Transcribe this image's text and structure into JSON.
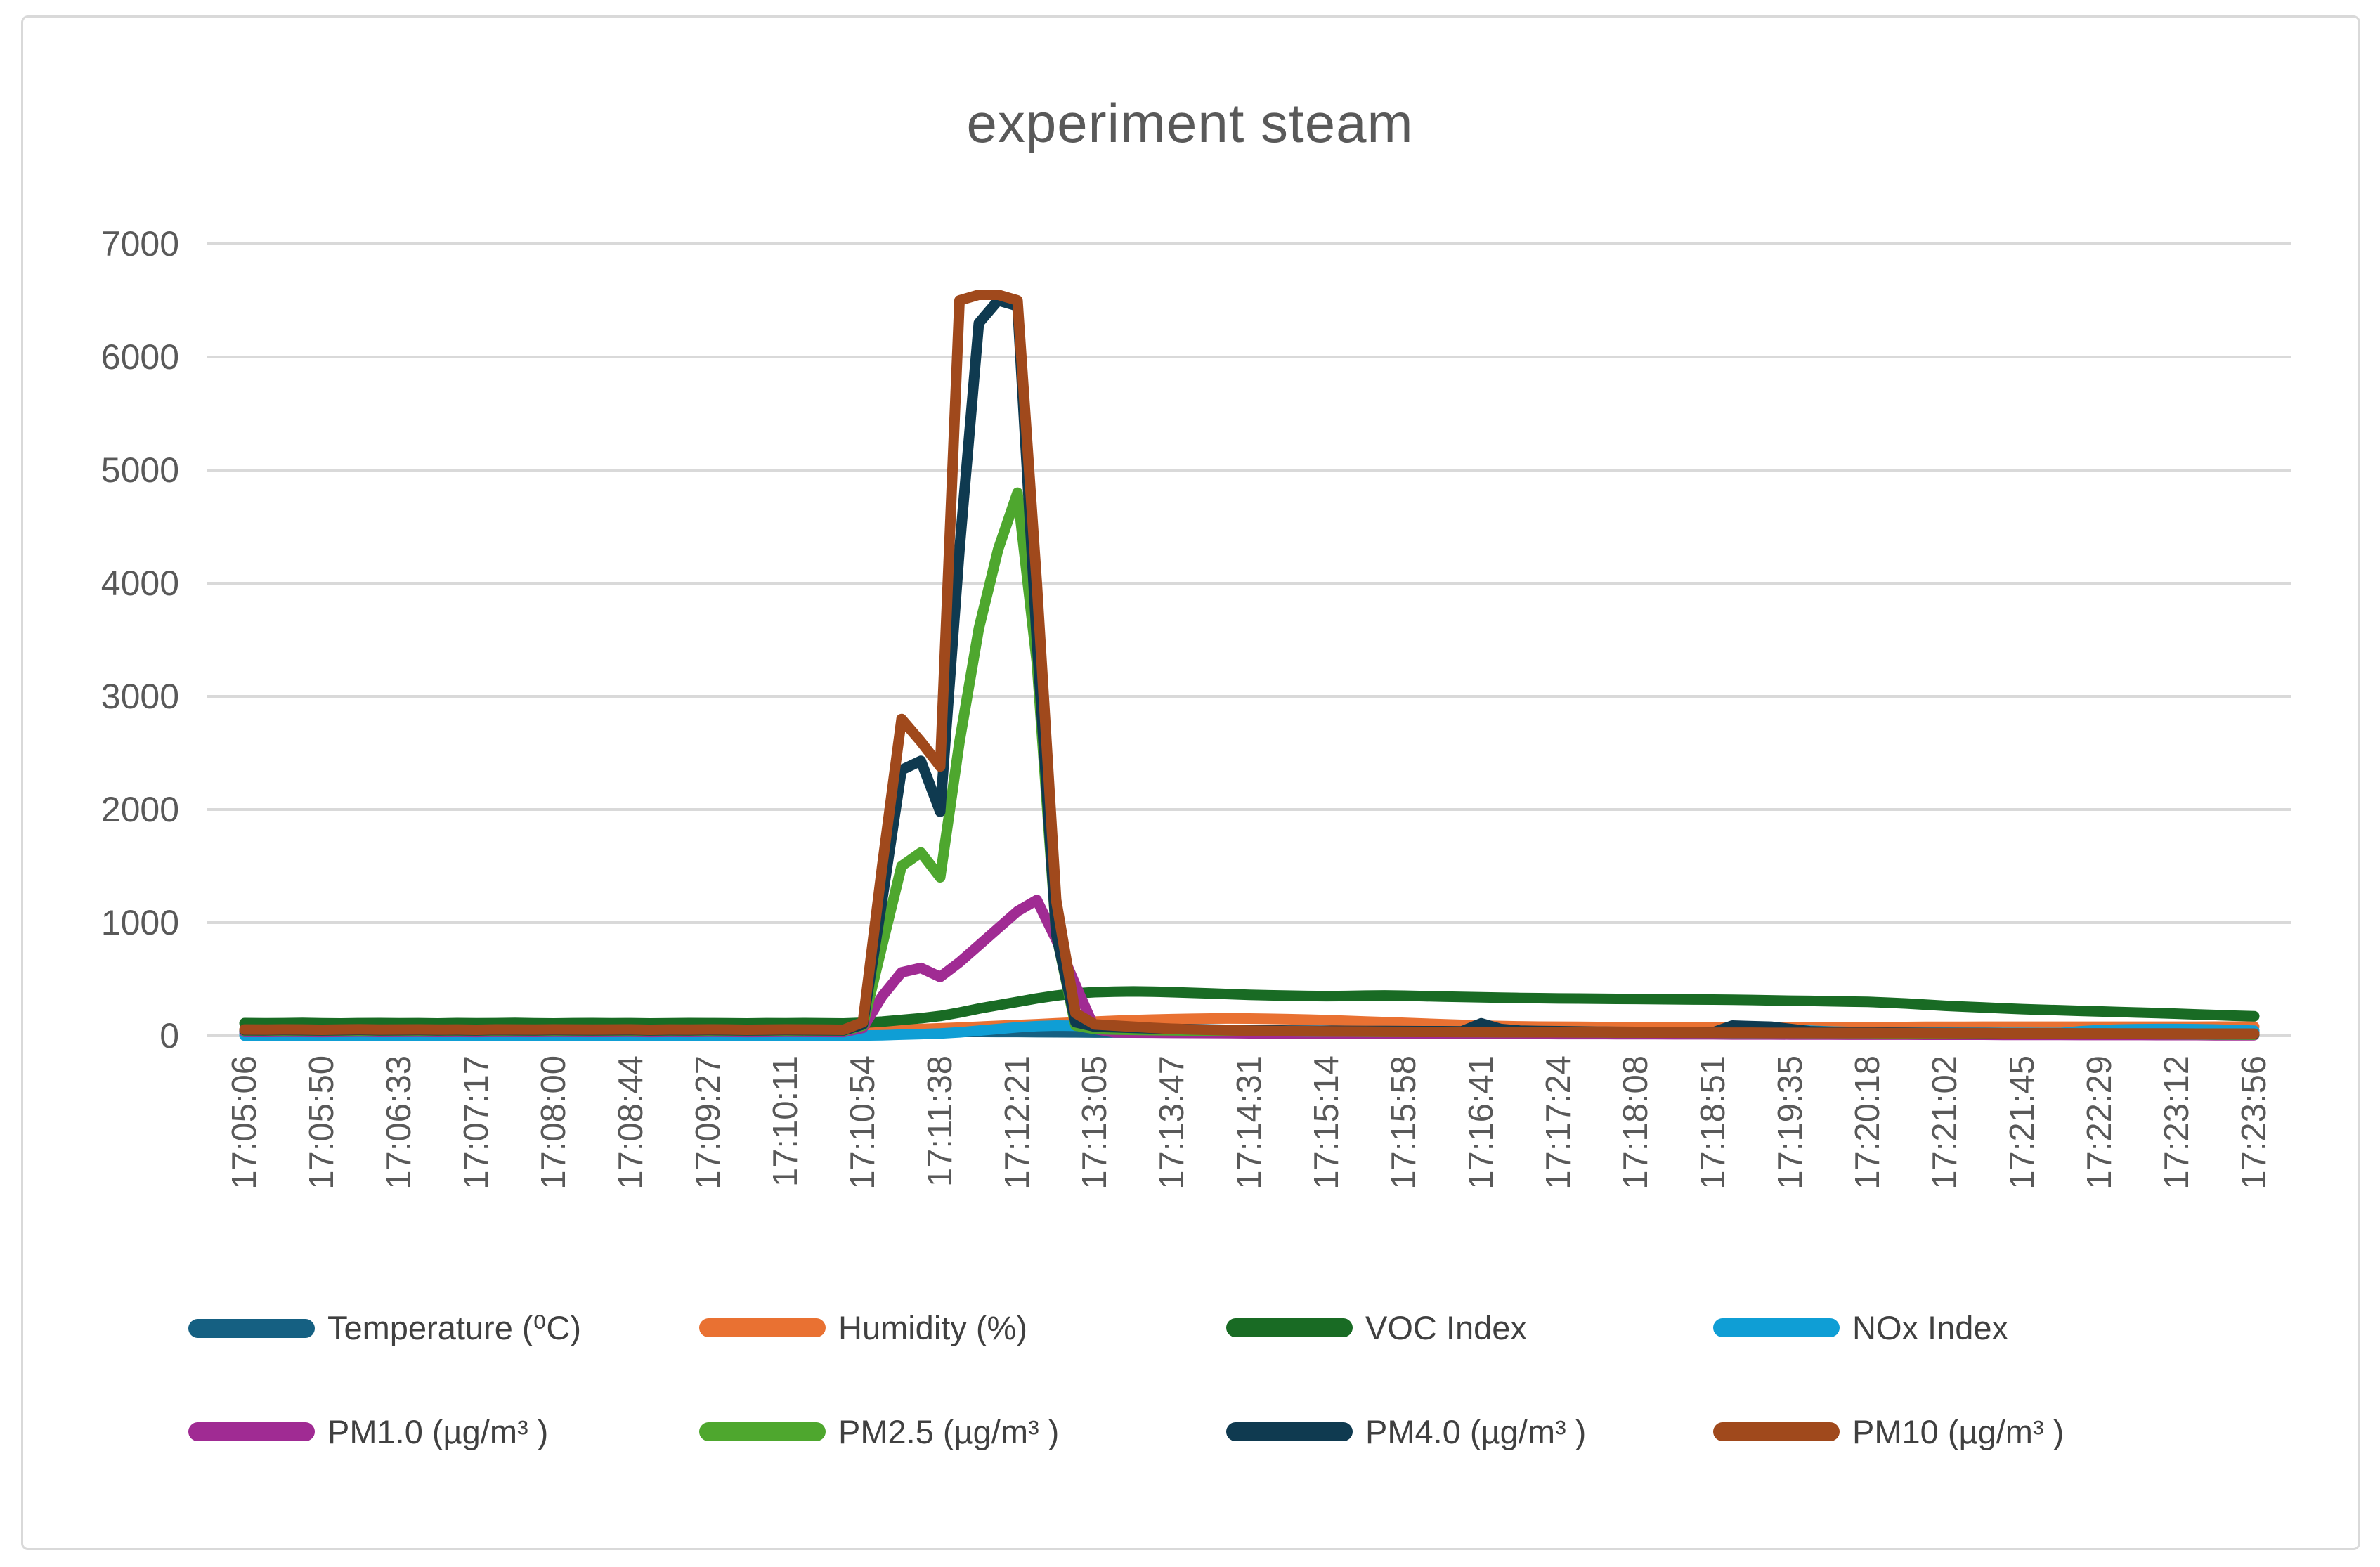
{
  "title": "experiment steam",
  "colors": {
    "grid": "#D9D9D9",
    "axis_text": "#595959",
    "title_text": "#595959",
    "legend_text": "#404040",
    "frame_border": "#D9D9D9"
  },
  "legend": {
    "items": [
      {
        "label": "Temperature (⁰C)",
        "color": "#156082"
      },
      {
        "label": "Humidity (%)",
        "color": "#E97132"
      },
      {
        "label": "VOC Index",
        "color": "#196B24"
      },
      {
        "label": "NOx Index",
        "color": "#0F9ED5"
      },
      {
        "label": "PM1.0 (µg/m³ )",
        "color": "#A02B93"
      },
      {
        "label": "PM2.5 (µg/m³ )",
        "color": "#4EA72E"
      },
      {
        "label": "PM4.0 (µg/m³ )",
        "color": "#0F3A50"
      },
      {
        "label": "PM10 (µg/m³ )",
        "color": "#A0491C"
      }
    ]
  },
  "chart_data": {
    "type": "line",
    "title": "experiment steam",
    "xlabel": "",
    "ylabel": "",
    "ylim": [
      0,
      7000
    ],
    "grid": "horizontal",
    "legend_position": "bottom",
    "y_ticks": [
      0,
      1000,
      2000,
      3000,
      4000,
      5000,
      6000,
      7000
    ],
    "x_tick_labels": [
      "17:05:06",
      "17:05:50",
      "17:06:33",
      "17:07:17",
      "17:08:00",
      "17:08:44",
      "17:09:27",
      "17:10:11",
      "17:10:54",
      "17:11:38",
      "17:12:21",
      "17:13:05",
      "17:13:47",
      "17:14:31",
      "17:15:14",
      "17:15:58",
      "17:16:41",
      "17:17:24",
      "17:18:08",
      "17:18:51",
      "17:19:35",
      "17:20:18",
      "17:21:02",
      "17:21:45",
      "17:22:29",
      "17:23:12",
      "17:23:56"
    ],
    "points_per_label_interval": 4,
    "series": [
      {
        "name": "Temperature (⁰C)",
        "color": "#156082",
        "values": [
          28,
          28,
          28,
          28,
          28,
          28,
          28,
          28,
          28,
          28,
          28,
          28,
          28,
          28,
          28,
          28,
          28,
          28,
          28,
          28,
          28,
          28,
          28,
          28,
          28,
          28,
          28,
          28,
          28,
          28,
          28,
          28,
          29,
          30,
          31,
          32,
          33,
          34,
          34,
          33,
          33,
          32,
          31,
          30,
          29,
          29,
          29,
          28,
          28,
          28,
          28,
          28,
          28,
          28,
          28,
          28,
          28,
          28,
          28,
          28,
          28,
          28,
          28,
          28,
          28,
          28,
          28,
          28,
          28,
          28,
          28,
          28,
          28,
          28,
          28,
          28,
          28,
          28,
          28,
          28,
          28,
          28,
          28,
          28,
          28,
          28,
          28,
          28,
          28,
          28,
          28,
          28,
          28,
          28,
          28,
          28,
          28,
          28,
          28,
          28,
          28,
          28,
          28,
          28,
          28
        ]
      },
      {
        "name": "Humidity (%)",
        "color": "#E97132",
        "values": [
          45,
          45,
          45,
          45,
          45,
          45,
          45,
          45,
          45,
          45,
          45,
          45,
          45,
          45,
          45,
          45,
          45,
          45,
          45,
          45,
          45,
          45,
          45,
          45,
          45,
          45,
          45,
          45,
          45,
          45,
          45,
          45,
          46,
          50,
          55,
          60,
          66,
          72,
          80,
          88,
          95,
          102,
          110,
          118,
          125,
          132,
          138,
          143,
          147,
          150,
          152,
          153,
          152,
          150,
          147,
          143,
          138,
          132,
          126,
          120,
          114,
          108,
          102,
          96,
          90,
          86,
          83,
          81,
          80,
          79,
          78,
          78,
          77,
          77,
          76,
          76,
          76,
          75,
          75,
          75,
          76,
          76,
          77,
          77,
          78,
          78,
          78,
          79,
          79,
          79,
          80,
          80,
          80,
          80,
          80,
          80,
          80,
          80,
          80,
          80,
          80,
          80,
          81,
          81,
          80
        ]
      },
      {
        "name": "VOC Index",
        "color": "#196B24",
        "values": [
          112,
          110,
          111,
          113,
          110,
          109,
          111,
          112,
          110,
          111,
          109,
          112,
          110,
          111,
          113,
          110,
          109,
          111,
          112,
          110,
          111,
          109,
          110,
          112,
          111,
          110,
          109,
          111,
          110,
          112,
          110,
          109,
          115,
          125,
          140,
          155,
          175,
          205,
          240,
          270,
          300,
          330,
          355,
          375,
          385,
          390,
          392,
          390,
          385,
          380,
          374,
          368,
          362,
          358,
          355,
          352,
          350,
          352,
          355,
          356,
          354,
          350,
          346,
          343,
          340,
          337,
          334,
          332,
          330,
          329,
          328,
          326,
          325,
          324,
          322,
          321,
          320,
          318,
          316,
          313,
          310,
          308,
          305,
          302,
          300,
          293,
          285,
          275,
          265,
          257,
          250,
          242,
          235,
          230,
          225,
          220,
          215,
          210,
          205,
          200,
          195,
          189,
          183,
          177,
          172
        ]
      },
      {
        "name": "NOx Index",
        "color": "#0F9ED5",
        "values": [
          1,
          1,
          1,
          1,
          1,
          1,
          1,
          1,
          1,
          1,
          1,
          1,
          1,
          1,
          1,
          1,
          1,
          1,
          1,
          1,
          1,
          1,
          1,
          1,
          1,
          1,
          1,
          1,
          1,
          1,
          1,
          1,
          2,
          5,
          10,
          15,
          20,
          30,
          45,
          60,
          75,
          85,
          90,
          88,
          80,
          70,
          62,
          55,
          50,
          46,
          43,
          41,
          40,
          39,
          38,
          37,
          36,
          36,
          35,
          35,
          34,
          34,
          33,
          33,
          32,
          32,
          31,
          31,
          30,
          30,
          30,
          29,
          29,
          29,
          28,
          28,
          28,
          60,
          70,
          65,
          55,
          45,
          38,
          34,
          32,
          30,
          29,
          28,
          28,
          27,
          27,
          26,
          26,
          25,
          25,
          40,
          50,
          55,
          58,
          60,
          60,
          58,
          55,
          50,
          45
        ]
      },
      {
        "name": "PM1.0 (µg/m³ )",
        "color": "#A02B93",
        "values": [
          35,
          34,
          36,
          35,
          33,
          35,
          37,
          34,
          35,
          36,
          34,
          35,
          33,
          36,
          35,
          34,
          36,
          35,
          34,
          35,
          36,
          33,
          35,
          34,
          36,
          35,
          33,
          34,
          36,
          35,
          34,
          33,
          70,
          350,
          560,
          600,
          520,
          650,
          800,
          950,
          1100,
          1200,
          850,
          450,
          60,
          30,
          28,
          27,
          26,
          25,
          24,
          23,
          22,
          22,
          21,
          21,
          20,
          20,
          19,
          19,
          18,
          18,
          17,
          17,
          17,
          16,
          16,
          16,
          15,
          15,
          15,
          14,
          14,
          14,
          13,
          13,
          13,
          12,
          12,
          12,
          11,
          11,
          11,
          10,
          10,
          10,
          10,
          9,
          9,
          9,
          9,
          8,
          8,
          8,
          8,
          7,
          7,
          7,
          7,
          6,
          6,
          6,
          5,
          5,
          5
        ]
      },
      {
        "name": "PM2.5 (µg/m³ )",
        "color": "#4EA72E",
        "values": [
          45,
          44,
          46,
          45,
          43,
          45,
          47,
          44,
          45,
          46,
          44,
          45,
          43,
          46,
          45,
          44,
          46,
          45,
          44,
          45,
          46,
          43,
          45,
          44,
          46,
          45,
          43,
          44,
          46,
          45,
          44,
          43,
          90,
          800,
          1500,
          1620,
          1400,
          2600,
          3600,
          4300,
          4800,
          3300,
          900,
          90,
          60,
          55,
          52,
          50,
          48,
          46,
          44,
          43,
          42,
          41,
          40,
          39,
          38,
          37,
          36,
          35,
          35,
          34,
          34,
          33,
          33,
          32,
          32,
          31,
          31,
          30,
          30,
          29,
          29,
          28,
          28,
          27,
          27,
          26,
          26,
          25,
          25,
          24,
          24,
          23,
          23,
          22,
          22,
          21,
          21,
          20,
          20,
          19,
          19,
          18,
          18,
          17,
          17,
          16,
          16,
          15,
          14,
          13,
          12,
          11,
          10
        ]
      },
      {
        "name": "PM4.0 (µg/m³ )",
        "color": "#0F3A50",
        "values": [
          50,
          49,
          51,
          50,
          48,
          50,
          52,
          49,
          50,
          51,
          49,
          50,
          48,
          51,
          50,
          49,
          51,
          50,
          49,
          50,
          51,
          48,
          50,
          49,
          51,
          50,
          48,
          49,
          51,
          50,
          49,
          48,
          100,
          1200,
          2350,
          2430,
          1980,
          4300,
          6300,
          6500,
          6450,
          3500,
          900,
          120,
          80,
          75,
          70,
          65,
          60,
          58,
          55,
          52,
          50,
          48,
          46,
          45,
          44,
          43,
          42,
          42,
          41,
          40,
          40,
          39,
          110,
          60,
          45,
          42,
          40,
          38,
          36,
          35,
          34,
          33,
          32,
          31,
          30,
          90,
          85,
          80,
          60,
          40,
          35,
          32,
          30,
          28,
          27,
          26,
          25,
          24,
          23,
          22,
          21,
          20,
          20,
          19,
          18,
          18,
          17,
          17,
          16,
          16,
          15,
          15,
          15
        ]
      },
      {
        "name": "PM10 (µg/m³ )",
        "color": "#A0491C",
        "values": [
          55,
          54,
          56,
          55,
          53,
          55,
          57,
          54,
          55,
          56,
          54,
          55,
          53,
          56,
          55,
          54,
          56,
          55,
          54,
          55,
          56,
          53,
          55,
          54,
          56,
          55,
          53,
          54,
          56,
          55,
          54,
          53,
          120,
          1500,
          2800,
          2600,
          2380,
          6500,
          6550,
          6550,
          6500,
          4000,
          1200,
          200,
          100,
          90,
          80,
          70,
          62,
          56,
          52,
          48,
          45,
          43,
          41,
          40,
          39,
          38,
          37,
          36,
          35,
          34,
          34,
          33,
          33,
          32,
          32,
          31,
          31,
          30,
          30,
          29,
          29,
          28,
          28,
          28,
          27,
          27,
          27,
          26,
          26,
          26,
          25,
          25,
          25,
          24,
          24,
          24,
          23,
          23,
          23,
          22,
          22,
          22,
          21,
          21,
          21,
          20,
          20,
          20,
          20,
          19,
          19,
          19,
          19
        ]
      }
    ]
  }
}
